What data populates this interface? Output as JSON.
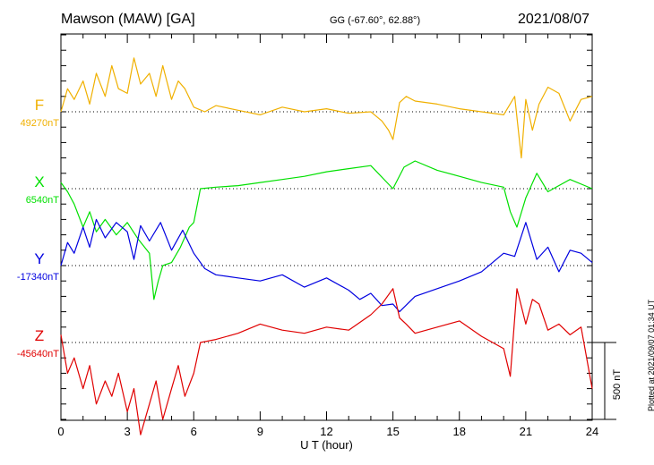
{
  "header": {
    "station": "Mawson (MAW)  [GA]",
    "coords": "GG (-67.60°,  62.88°)",
    "date": "2021/08/07"
  },
  "footer": {
    "plotted": "Plotted at 2021/09/07 01:34 UT"
  },
  "chart_data": {
    "type": "line",
    "xlabel": "U T (hour)",
    "xlim": [
      0,
      24
    ],
    "xticks": [
      0,
      3,
      6,
      9,
      12,
      15,
      18,
      21,
      24
    ],
    "xtick_labels": [
      "0",
      "3",
      "6",
      "9",
      "12",
      "15",
      "18",
      "21",
      "24"
    ],
    "grid": "dotted horizontal baselines per component",
    "scale_bar_label": "500 nT",
    "scale_nT": 500,
    "series": [
      {
        "name": "F",
        "baseline_label": "49270nT",
        "baseline_nT": 49270,
        "color": "#f0b000",
        "hours": [
          0,
          0.3,
          0.6,
          1.0,
          1.3,
          1.6,
          2.0,
          2.3,
          2.6,
          3.0,
          3.3,
          3.6,
          4.0,
          4.3,
          4.6,
          5.0,
          5.3,
          5.6,
          6.0,
          6.5,
          7,
          8,
          9,
          10,
          11,
          12,
          13,
          14,
          14.5,
          14.8,
          15.0,
          15.3,
          15.6,
          16,
          17,
          18,
          19,
          20,
          20.5,
          20.8,
          21.0,
          21.3,
          21.6,
          22,
          22.5,
          23,
          23.5,
          24
        ],
        "values": [
          0,
          150,
          80,
          200,
          50,
          250,
          100,
          300,
          150,
          120,
          350,
          180,
          250,
          100,
          300,
          80,
          200,
          150,
          30,
          0,
          40,
          10,
          -20,
          30,
          0,
          20,
          -10,
          0,
          -60,
          -120,
          -180,
          60,
          100,
          70,
          50,
          20,
          0,
          -20,
          100,
          -300,
          80,
          -120,
          50,
          160,
          120,
          -60,
          80,
          100
        ]
      },
      {
        "name": "X",
        "baseline_label": "6540nT",
        "baseline_nT": 6540,
        "color": "#00e000",
        "hours": [
          0,
          0.3,
          0.6,
          1.0,
          1.3,
          1.6,
          2.0,
          2.5,
          3.0,
          3.5,
          4.0,
          4.2,
          4.4,
          4.6,
          5.0,
          5.4,
          5.8,
          6.0,
          6.3,
          7,
          8,
          9,
          10,
          11,
          12,
          13,
          14,
          15,
          15.5,
          16,
          17,
          18,
          19,
          20,
          20.3,
          20.6,
          21,
          21.5,
          22,
          23,
          24
        ],
        "values": [
          40,
          -20,
          -100,
          -250,
          -150,
          -280,
          -200,
          -300,
          -220,
          -330,
          -420,
          -720,
          -600,
          -500,
          -480,
          -380,
          -250,
          -220,
          0,
          10,
          20,
          40,
          60,
          80,
          110,
          130,
          150,
          0,
          140,
          180,
          120,
          80,
          40,
          10,
          -150,
          -250,
          -60,
          100,
          -20,
          60,
          0
        ]
      },
      {
        "name": "Y",
        "baseline_label": "-17340nT",
        "baseline_nT": -17340,
        "color": "#0000e0",
        "hours": [
          0,
          0.3,
          0.6,
          1.0,
          1.3,
          1.6,
          2.0,
          2.5,
          3.0,
          3.3,
          3.6,
          4.0,
          4.5,
          5.0,
          5.5,
          6.0,
          6.5,
          7,
          8,
          9,
          10,
          11,
          12,
          13,
          13.5,
          14,
          14.5,
          15,
          15.3,
          16,
          17,
          18,
          19,
          20,
          20.5,
          21,
          21.5,
          22,
          22.5,
          23,
          23.5,
          24
        ],
        "values": [
          0,
          150,
          80,
          250,
          120,
          300,
          180,
          280,
          220,
          40,
          260,
          160,
          280,
          100,
          230,
          80,
          -20,
          -60,
          -80,
          -100,
          -60,
          -140,
          -80,
          -160,
          -220,
          -180,
          -260,
          -250,
          -300,
          -200,
          -150,
          -100,
          -40,
          80,
          60,
          280,
          40,
          120,
          -40,
          100,
          80,
          20
        ]
      },
      {
        "name": "Z",
        "baseline_label": "-45640nT",
        "baseline_nT": -45640,
        "color": "#e00000",
        "hours": [
          0,
          0.3,
          0.6,
          1.0,
          1.3,
          1.6,
          2.0,
          2.3,
          2.6,
          3.0,
          3.3,
          3.6,
          4.0,
          4.3,
          4.6,
          5.0,
          5.3,
          5.6,
          6.0,
          6.3,
          7,
          8,
          9,
          10,
          11,
          12,
          13,
          14,
          14.5,
          15,
          15.3,
          15.6,
          16,
          17,
          18,
          19,
          20,
          20.3,
          20.6,
          21,
          21.3,
          21.6,
          22,
          22.5,
          23,
          23.5,
          24
        ],
        "values": [
          50,
          -200,
          -100,
          -300,
          -150,
          -400,
          -250,
          -350,
          -200,
          -450,
          -300,
          -600,
          -400,
          -250,
          -500,
          -300,
          -150,
          -350,
          -200,
          0,
          20,
          60,
          120,
          80,
          60,
          100,
          80,
          180,
          250,
          350,
          160,
          120,
          60,
          100,
          140,
          40,
          -40,
          -220,
          350,
          120,
          280,
          250,
          80,
          120,
          50,
          100,
          -300
        ]
      }
    ]
  }
}
